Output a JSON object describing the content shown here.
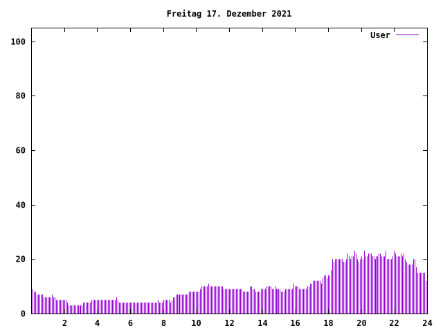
{
  "chart_data": {
    "type": "bar",
    "style": "impulses",
    "title": "Freitag 17. Dezember 2021",
    "xlabel": "",
    "ylabel": "",
    "xlim": [
      0,
      24
    ],
    "ylim": [
      0,
      105
    ],
    "x_interval_hours": 0.08333,
    "xticks": [
      2,
      4,
      6,
      8,
      10,
      12,
      14,
      16,
      18,
      20,
      22,
      24
    ],
    "yticks": [
      0,
      20,
      40,
      60,
      80,
      100
    ],
    "grid": false,
    "legend_position": "top-right",
    "series": [
      {
        "name": "User",
        "color": "#9400d3",
        "values": [
          9,
          9,
          8,
          8,
          7,
          7,
          7,
          7,
          7,
          6,
          6,
          6,
          6,
          6,
          6,
          7,
          6,
          6,
          5,
          5,
          5,
          5,
          5,
          5,
          5,
          5,
          4,
          3,
          3,
          3,
          3,
          3,
          3,
          3,
          3,
          3,
          3,
          3,
          4,
          4,
          4,
          4,
          4,
          4,
          5,
          5,
          5,
          5,
          5,
          5,
          5,
          5,
          5,
          5,
          5,
          5,
          5,
          5,
          5,
          5,
          5,
          5,
          6,
          5,
          4,
          4,
          4,
          4,
          4,
          4,
          4,
          4,
          4,
          4,
          4,
          4,
          4,
          4,
          4,
          4,
          4,
          4,
          4,
          4,
          4,
          4,
          4,
          4,
          4,
          4,
          4,
          4,
          5,
          4,
          4,
          4,
          5,
          5,
          5,
          5,
          5,
          4,
          5,
          6,
          6,
          7,
          7,
          7,
          7,
          7,
          7,
          7,
          7,
          7,
          7,
          8,
          8,
          8,
          8,
          8,
          8,
          8,
          8,
          9,
          10,
          10,
          10,
          10,
          10,
          11,
          10,
          10,
          10,
          10,
          10,
          10,
          10,
          10,
          10,
          10,
          9,
          9,
          9,
          9,
          9,
          9,
          9,
          9,
          9,
          9,
          9,
          9,
          9,
          9,
          8,
          8,
          8,
          8,
          8,
          10,
          10,
          9,
          9,
          8,
          8,
          8,
          8,
          9,
          9,
          9,
          9,
          10,
          10,
          10,
          10,
          9,
          9,
          10,
          9,
          9,
          9,
          9,
          8,
          8,
          8,
          9,
          9,
          9,
          9,
          9,
          9,
          11,
          10,
          10,
          10,
          9,
          9,
          9,
          9,
          9,
          9,
          10,
          10,
          11,
          11,
          12,
          12,
          12,
          12,
          12,
          12,
          11,
          13,
          14,
          14,
          13,
          14,
          14,
          16,
          20,
          19,
          20,
          20,
          20,
          20,
          20,
          20,
          19,
          19,
          20,
          22,
          21,
          20,
          21,
          21,
          23,
          22,
          20,
          19,
          20,
          21,
          20,
          23,
          21,
          21,
          22,
          22,
          22,
          21,
          21,
          20,
          21,
          21,
          22,
          22,
          21,
          21,
          21,
          23,
          20,
          20,
          20,
          20,
          21,
          23,
          22,
          21,
          21,
          21,
          22,
          21,
          22,
          20,
          19,
          18,
          18,
          18,
          18,
          20,
          20,
          17,
          15,
          15,
          15,
          15,
          15,
          15,
          12
        ]
      }
    ]
  }
}
